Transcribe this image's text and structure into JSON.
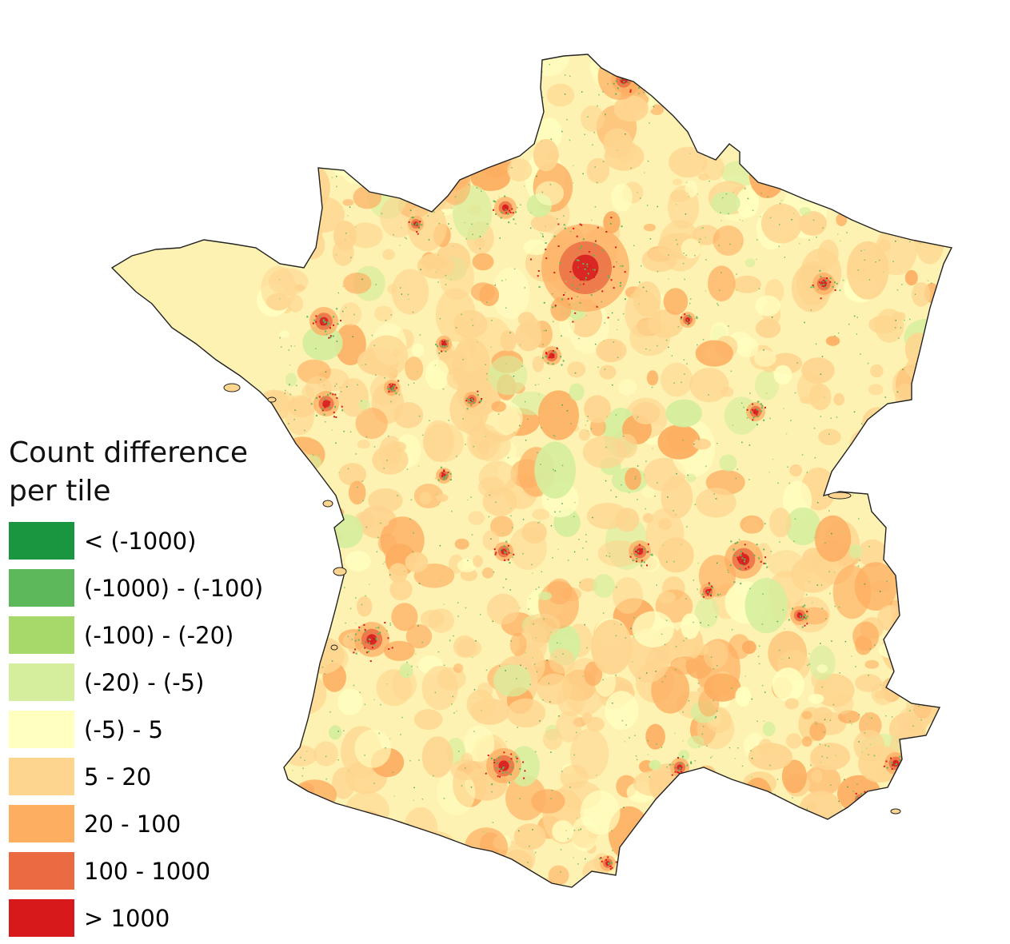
{
  "legend": {
    "title": "Count difference\nper tile",
    "classes": [
      {
        "label": "< (-1000)",
        "color": "#1a9641"
      },
      {
        "label": "(-1000) - (-100)",
        "color": "#5cb85a"
      },
      {
        "label": "(-100) - (-20)",
        "color": "#a6d96a"
      },
      {
        "label": "(-20) - (-5)",
        "color": "#d5ee9d"
      },
      {
        "label": "(-5) - 5",
        "color": "#ffffc0"
      },
      {
        "label": "5 - 20",
        "color": "#fed58f"
      },
      {
        "label": "20 - 100",
        "color": "#fdae61"
      },
      {
        "label": "100 - 1000",
        "color": "#ea6a42"
      },
      {
        "label": "> 1000",
        "color": "#d7191c"
      }
    ]
  },
  "map": {
    "region": "France",
    "base_color": "#fef2b2",
    "outline_color": "#222222"
  }
}
